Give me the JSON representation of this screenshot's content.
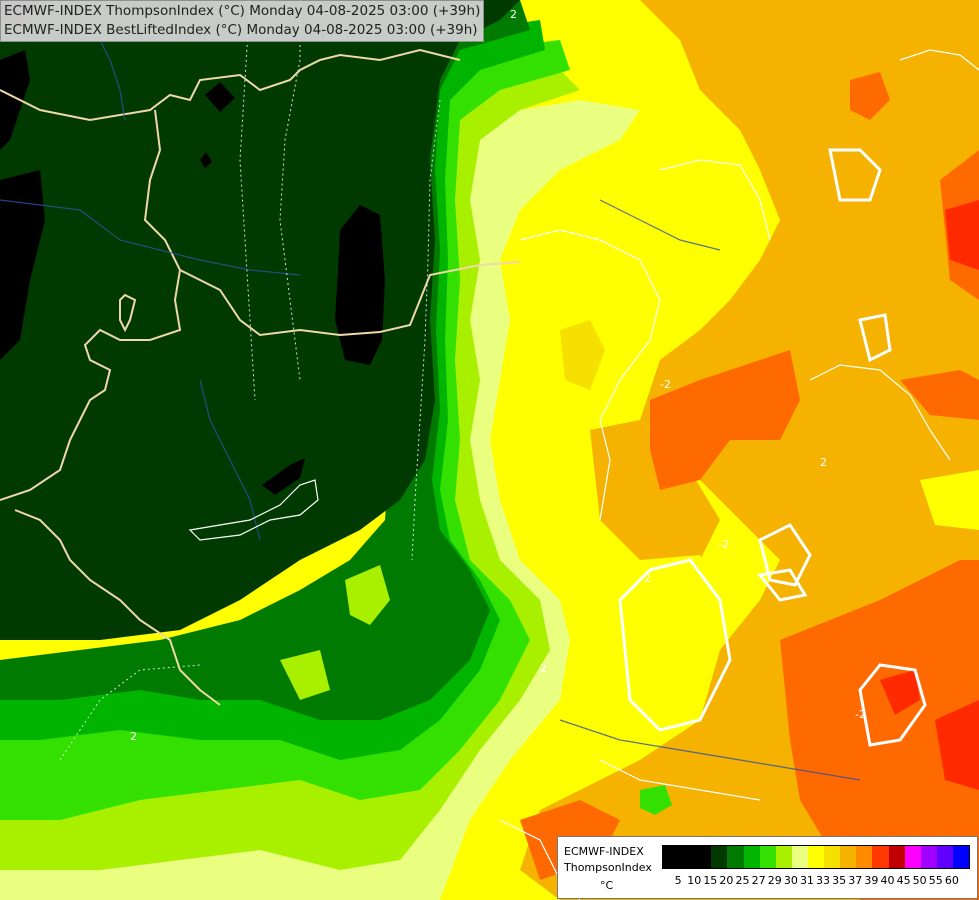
{
  "title": {
    "line1": "ECMWF-INDEX ThompsonIndex (°C) Monday 04-08-2025 03:00 (+39h)",
    "line2": "ECMWF-INDEX BestLiftedIndex (°C) Monday 04-08-2025 03:00 (+39h)"
  },
  "legend": {
    "line1": "ECMWF-INDEX",
    "line2": "ThompsonIndex",
    "unit": "°C",
    "ticks": [
      "5",
      "10",
      "15",
      "20",
      "25",
      "27",
      "29",
      "30",
      "31",
      "33",
      "35",
      "37",
      "39",
      "40",
      "45",
      "50",
      "55",
      "60"
    ],
    "colors": [
      "#000000",
      "#000000",
      "#000000",
      "#003a00",
      "#007a00",
      "#00b400",
      "#33e000",
      "#a8f000",
      "#eaff80",
      "#ffff00",
      "#f6e000",
      "#f5b200",
      "#ff8c00",
      "#ff3a00",
      "#c00000",
      "#ff00ff",
      "#a000ff",
      "#6000ff",
      "#0000ff"
    ]
  },
  "map_labels": [
    "2",
    "2",
    "2",
    "2",
    "-2",
    "-2",
    "-2",
    "-2"
  ]
}
